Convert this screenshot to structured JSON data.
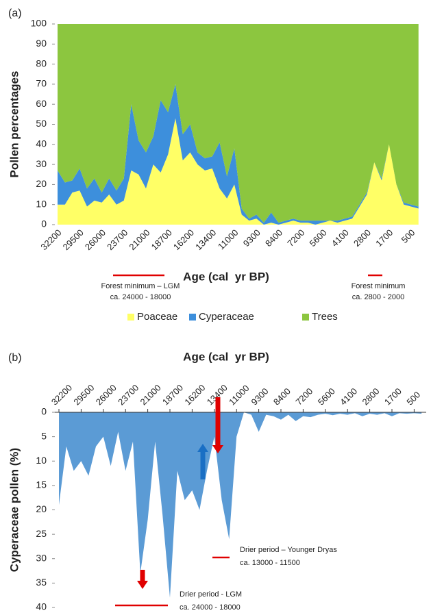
{
  "chart_data": [
    {
      "type": "stacked_area",
      "panel_label": "(a)",
      "x_label": "Age (cal  yr BP)",
      "y_label": "Pollen percentages",
      "categories": [
        "32200",
        null,
        null,
        "29500",
        null,
        null,
        "26000",
        null,
        null,
        "23700",
        null,
        null,
        "21000",
        null,
        null,
        "18700",
        null,
        null,
        "16200",
        null,
        null,
        "13400",
        null,
        null,
        "11000",
        null,
        null,
        "9300",
        null,
        null,
        "8400",
        null,
        null,
        "7200",
        null,
        null,
        "5600",
        null,
        null,
        "4100",
        null,
        null,
        "2800",
        null,
        null,
        "1700",
        null,
        null,
        "500",
        null
      ],
      "series": [
        {
          "name": "Poaceae",
          "color": "#ffff66",
          "values": [
            10,
            10,
            16,
            17,
            9,
            12,
            11,
            15,
            10,
            12,
            27,
            25,
            18,
            30,
            26,
            35,
            53,
            32,
            36,
            30,
            27,
            28,
            18,
            13,
            20,
            5,
            2,
            3,
            0,
            1,
            0,
            1,
            2,
            1,
            1,
            0,
            1,
            2,
            1,
            2,
            3,
            9,
            15,
            31,
            22,
            40,
            20,
            10,
            9,
            8
          ]
        },
        {
          "name": "Cyperaceae",
          "color": "#3d8fdc",
          "values": [
            17,
            11,
            6,
            11,
            9,
            11,
            5,
            8,
            7,
            11,
            33,
            17,
            18,
            14,
            36,
            21,
            17,
            13,
            14,
            6,
            6,
            6,
            23,
            11,
            18,
            3,
            1,
            2,
            1,
            5,
            1,
            1,
            1,
            1,
            1,
            2,
            1,
            0,
            1,
            1,
            1,
            1,
            1,
            0,
            1,
            0,
            0,
            1,
            1,
            1
          ]
        },
        {
          "name": "Trees",
          "color": "#8cc63f",
          "values": [
            73,
            79,
            78,
            72,
            82,
            77,
            84,
            77,
            83,
            77,
            40,
            58,
            64,
            56,
            38,
            44,
            30,
            55,
            50,
            64,
            67,
            66,
            59,
            76,
            62,
            92,
            97,
            95,
            99,
            94,
            99,
            98,
            97,
            98,
            98,
            98,
            98,
            98,
            98,
            97,
            96,
            90,
            84,
            69,
            77,
            60,
            80,
            89,
            90,
            91
          ]
        }
      ],
      "ylim": [
        0,
        100
      ],
      "yticks": [
        0,
        10,
        20,
        30,
        40,
        50,
        60,
        70,
        80,
        90,
        100
      ],
      "legend": "bottom",
      "annotations": [
        [
          "Forest minimum – LGM",
          "ca. 24000 - 18000"
        ],
        [
          "Forest minimum",
          "ca. 2800 - 2000"
        ]
      ]
    },
    {
      "type": "area",
      "panel_label": "(b)",
      "x_label": "Age (cal  yr BP)",
      "y_label": "Cyperaceae pollen (%)",
      "x_axis": "top",
      "inverted": true,
      "categories": [
        "32200",
        null,
        null,
        "29500",
        null,
        null,
        "26000",
        null,
        null,
        "23700",
        null,
        null,
        "21000",
        null,
        null,
        "18700",
        null,
        null,
        "16200",
        null,
        null,
        "13400",
        null,
        null,
        "11000",
        null,
        null,
        "9300",
        null,
        null,
        "8400",
        null,
        null,
        "7200",
        null,
        null,
        "5600",
        null,
        null,
        "4100",
        null,
        null,
        "2800",
        null,
        null,
        "1700",
        null,
        null,
        "500",
        null
      ],
      "color": "#5b9bd5",
      "values": [
        19,
        7,
        12,
        10,
        13,
        7,
        5,
        11,
        4,
        12,
        6,
        33,
        22,
        6,
        21,
        38,
        12,
        18,
        16,
        20,
        12,
        5,
        18,
        26,
        5,
        0,
        0.5,
        4,
        0.5,
        0.8,
        1.5,
        0.5,
        1.8,
        0.8,
        1,
        0.5,
        0.3,
        0.6,
        0.3,
        0.5,
        0.2,
        0.8,
        0.3,
        0.5,
        0.2,
        0.8,
        0.2,
        0.3,
        0.2,
        0.3
      ],
      "ylim": [
        0,
        40
      ],
      "yticks": [
        0,
        5,
        10,
        15,
        20,
        25,
        30,
        35,
        40
      ],
      "annotations": [
        [
          "Drier period – Younger Dryas",
          "ca. 13000 - 11500"
        ],
        [
          "Drier period - LGM",
          "ca. 24000 - 18000"
        ]
      ]
    }
  ]
}
